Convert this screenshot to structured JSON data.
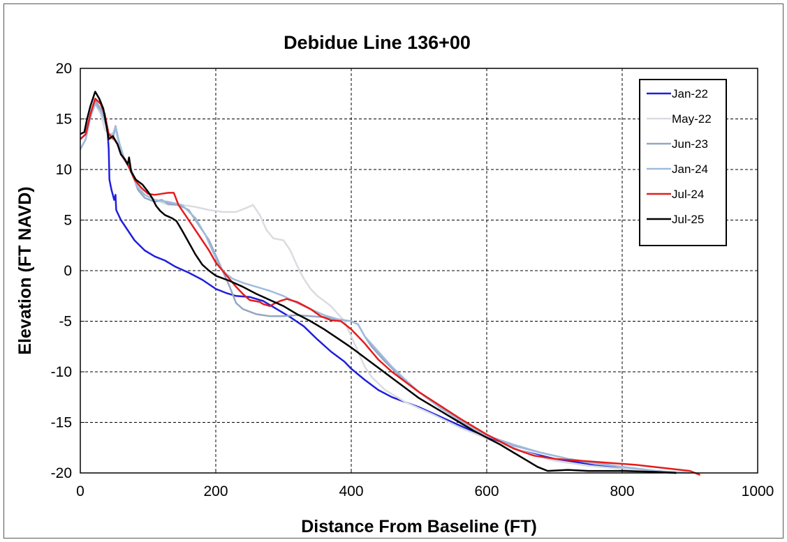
{
  "chart_data": {
    "type": "line",
    "title": "Debidue Line 136+00",
    "xlabel": "Distance From Baseline (FT)",
    "ylabel": "Elevation (FT NAVD)",
    "xlim": [
      0,
      1000
    ],
    "ylim": [
      -20,
      20
    ],
    "xticks": [
      0,
      200,
      400,
      600,
      800,
      1000
    ],
    "yticks": [
      -20,
      -15,
      -10,
      -5,
      0,
      5,
      10,
      15,
      20
    ],
    "grid": true,
    "legend_position": "top-right",
    "series": [
      {
        "name": "Jan-22",
        "color": "#1f1fdc",
        "points": [
          [
            0,
            13
          ],
          [
            8,
            13.5
          ],
          [
            15,
            15.5
          ],
          [
            22,
            17
          ],
          [
            30,
            16.5
          ],
          [
            36,
            15.5
          ],
          [
            40,
            14
          ],
          [
            42,
            12
          ],
          [
            43,
            9
          ],
          [
            46,
            8
          ],
          [
            50,
            7
          ],
          [
            52,
            7.5
          ],
          [
            53,
            6
          ],
          [
            60,
            5
          ],
          [
            70,
            4
          ],
          [
            80,
            3
          ],
          [
            95,
            2
          ],
          [
            110,
            1.4
          ],
          [
            125,
            1
          ],
          [
            140,
            0.4
          ],
          [
            160,
            -0.2
          ],
          [
            180,
            -0.9
          ],
          [
            200,
            -1.8
          ],
          [
            215,
            -2.2
          ],
          [
            230,
            -2.5
          ],
          [
            250,
            -2.6
          ],
          [
            270,
            -3
          ],
          [
            290,
            -3.8
          ],
          [
            310,
            -4.6
          ],
          [
            330,
            -5.5
          ],
          [
            350,
            -6.8
          ],
          [
            370,
            -8
          ],
          [
            390,
            -9
          ],
          [
            400,
            -9.7
          ],
          [
            420,
            -10.8
          ],
          [
            440,
            -11.8
          ],
          [
            460,
            -12.5
          ],
          [
            500,
            -13.5
          ],
          [
            550,
            -15
          ],
          [
            600,
            -16.5
          ],
          [
            650,
            -17.8
          ],
          [
            700,
            -18.6
          ],
          [
            750,
            -19.1
          ],
          [
            800,
            -19.6
          ],
          [
            850,
            -19.9
          ],
          [
            880,
            -20
          ]
        ]
      },
      {
        "name": "May-22",
        "color": "#d9dce1",
        "points": [
          [
            0,
            12
          ],
          [
            8,
            13
          ],
          [
            15,
            15.5
          ],
          [
            22,
            16.5
          ],
          [
            30,
            15.5
          ],
          [
            36,
            14
          ],
          [
            45,
            13
          ],
          [
            52,
            14
          ],
          [
            58,
            12
          ],
          [
            65,
            11
          ],
          [
            75,
            10
          ],
          [
            85,
            8.5
          ],
          [
            95,
            7.5
          ],
          [
            110,
            7
          ],
          [
            130,
            6.5
          ],
          [
            150,
            6.5
          ],
          [
            170,
            6.3
          ],
          [
            190,
            6
          ],
          [
            210,
            5.8
          ],
          [
            230,
            5.8
          ],
          [
            245,
            6.2
          ],
          [
            255,
            6.5
          ],
          [
            265,
            5.5
          ],
          [
            275,
            4
          ],
          [
            285,
            3.2
          ],
          [
            300,
            3
          ],
          [
            310,
            2
          ],
          [
            320,
            0.5
          ],
          [
            330,
            -0.8
          ],
          [
            340,
            -1.8
          ],
          [
            350,
            -2.5
          ],
          [
            370,
            -3.5
          ],
          [
            390,
            -5
          ],
          [
            400,
            -6.5
          ],
          [
            410,
            -8
          ],
          [
            420,
            -9.5
          ],
          [
            430,
            -10.5
          ],
          [
            450,
            -11.8
          ],
          [
            480,
            -13
          ],
          [
            520,
            -14.2
          ],
          [
            560,
            -15.5
          ],
          [
            600,
            -16.6
          ],
          [
            650,
            -17.8
          ],
          [
            700,
            -18.8
          ],
          [
            750,
            -19.3
          ],
          [
            800,
            -19.6
          ],
          [
            850,
            -19.8
          ],
          [
            880,
            -20
          ]
        ]
      },
      {
        "name": "Jun-23",
        "color": "#94a6c2",
        "points": [
          [
            0,
            12
          ],
          [
            8,
            13
          ],
          [
            15,
            15.5
          ],
          [
            22,
            16.8
          ],
          [
            30,
            16
          ],
          [
            36,
            15
          ],
          [
            42,
            13.5
          ],
          [
            48,
            13
          ],
          [
            52,
            14.3
          ],
          [
            58,
            12.5
          ],
          [
            65,
            11
          ],
          [
            75,
            10
          ],
          [
            85,
            8
          ],
          [
            95,
            7.2
          ],
          [
            110,
            6.8
          ],
          [
            120,
            7
          ],
          [
            130,
            6.6
          ],
          [
            145,
            6.5
          ],
          [
            160,
            6
          ],
          [
            175,
            4.5
          ],
          [
            190,
            3
          ],
          [
            200,
            1.5
          ],
          [
            210,
            0
          ],
          [
            220,
            -1.5
          ],
          [
            230,
            -3.2
          ],
          [
            240,
            -3.8
          ],
          [
            260,
            -4.3
          ],
          [
            280,
            -4.5
          ],
          [
            300,
            -4.5
          ],
          [
            320,
            -4.4
          ],
          [
            340,
            -4.5
          ],
          [
            360,
            -4.6
          ],
          [
            380,
            -4.8
          ],
          [
            400,
            -5
          ],
          [
            410,
            -5.3
          ],
          [
            420,
            -6.5
          ],
          [
            430,
            -7.5
          ],
          [
            450,
            -9
          ],
          [
            470,
            -10.3
          ],
          [
            490,
            -11.5
          ],
          [
            520,
            -13
          ],
          [
            560,
            -14.8
          ],
          [
            600,
            -16.3
          ],
          [
            640,
            -17.3
          ],
          [
            680,
            -18
          ],
          [
            720,
            -18.6
          ],
          [
            760,
            -19
          ],
          [
            800,
            -19.4
          ],
          [
            850,
            -19.8
          ],
          [
            880,
            -20
          ]
        ]
      },
      {
        "name": "Jan-24",
        "color": "#9fbbdc",
        "points": [
          [
            0,
            12
          ],
          [
            8,
            13
          ],
          [
            15,
            15.2
          ],
          [
            22,
            16.5
          ],
          [
            30,
            15.8
          ],
          [
            36,
            14.8
          ],
          [
            42,
            13.5
          ],
          [
            48,
            13.5
          ],
          [
            52,
            14.2
          ],
          [
            58,
            12.5
          ],
          [
            65,
            11
          ],
          [
            75,
            9.8
          ],
          [
            85,
            8.2
          ],
          [
            95,
            7.5
          ],
          [
            110,
            7
          ],
          [
            130,
            6.8
          ],
          [
            150,
            6.5
          ],
          [
            170,
            5.2
          ],
          [
            185,
            3.5
          ],
          [
            195,
            2
          ],
          [
            205,
            0.5
          ],
          [
            215,
            -0.3
          ],
          [
            225,
            -0.8
          ],
          [
            240,
            -1.2
          ],
          [
            260,
            -1.6
          ],
          [
            280,
            -2
          ],
          [
            300,
            -2.5
          ],
          [
            320,
            -3.2
          ],
          [
            340,
            -3.8
          ],
          [
            360,
            -4.4
          ],
          [
            380,
            -4.8
          ],
          [
            400,
            -5
          ],
          [
            410,
            -5.3
          ],
          [
            420,
            -6.5
          ],
          [
            440,
            -8
          ],
          [
            460,
            -9.5
          ],
          [
            480,
            -10.8
          ],
          [
            500,
            -12
          ],
          [
            530,
            -13.5
          ],
          [
            560,
            -14.8
          ],
          [
            600,
            -16.3
          ],
          [
            640,
            -17.2
          ],
          [
            680,
            -18
          ],
          [
            720,
            -18.6
          ],
          [
            760,
            -19.1
          ],
          [
            800,
            -19.4
          ],
          [
            850,
            -19.8
          ],
          [
            900,
            -20
          ]
        ]
      },
      {
        "name": "Jul-24",
        "color": "#e51c1c",
        "points": [
          [
            0,
            13
          ],
          [
            8,
            13.5
          ],
          [
            15,
            15.5
          ],
          [
            22,
            17
          ],
          [
            30,
            16.5
          ],
          [
            36,
            15.5
          ],
          [
            42,
            13.5
          ],
          [
            50,
            13
          ],
          [
            55,
            12.5
          ],
          [
            60,
            11.5
          ],
          [
            70,
            10.5
          ],
          [
            80,
            9
          ],
          [
            90,
            8.2
          ],
          [
            100,
            7.6
          ],
          [
            110,
            7.5
          ],
          [
            120,
            7.6
          ],
          [
            130,
            7.7
          ],
          [
            138,
            7.7
          ],
          [
            145,
            6.5
          ],
          [
            155,
            5.5
          ],
          [
            170,
            4
          ],
          [
            180,
            3
          ],
          [
            190,
            2
          ],
          [
            200,
            0.8
          ],
          [
            210,
            0
          ],
          [
            220,
            -0.8
          ],
          [
            230,
            -1.6
          ],
          [
            240,
            -2.3
          ],
          [
            250,
            -2.9
          ],
          [
            265,
            -3.1
          ],
          [
            270,
            -3.3
          ],
          [
            280,
            -3.5
          ],
          [
            285,
            -3.3
          ],
          [
            295,
            -3
          ],
          [
            305,
            -2.8
          ],
          [
            320,
            -3.1
          ],
          [
            340,
            -3.8
          ],
          [
            355,
            -4.5
          ],
          [
            370,
            -4.9
          ],
          [
            385,
            -5
          ],
          [
            400,
            -5.8
          ],
          [
            420,
            -7.2
          ],
          [
            440,
            -8.8
          ],
          [
            460,
            -10
          ],
          [
            480,
            -11
          ],
          [
            500,
            -12
          ],
          [
            530,
            -13.3
          ],
          [
            560,
            -14.6
          ],
          [
            600,
            -16.2
          ],
          [
            640,
            -17.6
          ],
          [
            670,
            -18.3
          ],
          [
            700,
            -18.6
          ],
          [
            740,
            -18.8
          ],
          [
            780,
            -19
          ],
          [
            820,
            -19.2
          ],
          [
            860,
            -19.5
          ],
          [
            900,
            -19.8
          ],
          [
            915,
            -20.2
          ]
        ]
      },
      {
        "name": "Jul-25",
        "color": "#000000",
        "points": [
          [
            0,
            13.5
          ],
          [
            6,
            13.7
          ],
          [
            10,
            15
          ],
          [
            15,
            16.3
          ],
          [
            22,
            17.7
          ],
          [
            28,
            17
          ],
          [
            34,
            16
          ],
          [
            38,
            14.5
          ],
          [
            42,
            13
          ],
          [
            48,
            13.3
          ],
          [
            55,
            12.5
          ],
          [
            60,
            11.5
          ],
          [
            66,
            11
          ],
          [
            70,
            10.5
          ],
          [
            72,
            11.2
          ],
          [
            75,
            9.8
          ],
          [
            82,
            9
          ],
          [
            92,
            8.5
          ],
          [
            100,
            7.8
          ],
          [
            106,
            7.2
          ],
          [
            112,
            6.4
          ],
          [
            118,
            5.9
          ],
          [
            125,
            5.5
          ],
          [
            135,
            5.2
          ],
          [
            142,
            4.9
          ],
          [
            150,
            4
          ],
          [
            160,
            2.8
          ],
          [
            170,
            1.6
          ],
          [
            180,
            0.6
          ],
          [
            190,
            0
          ],
          [
            200,
            -0.5
          ],
          [
            220,
            -1
          ],
          [
            240,
            -1.6
          ],
          [
            260,
            -2.3
          ],
          [
            280,
            -2.9
          ],
          [
            300,
            -3.5
          ],
          [
            320,
            -4.3
          ],
          [
            340,
            -5
          ],
          [
            360,
            -5.8
          ],
          [
            380,
            -6.7
          ],
          [
            400,
            -7.6
          ],
          [
            420,
            -8.6
          ],
          [
            440,
            -9.6
          ],
          [
            460,
            -10.6
          ],
          [
            480,
            -11.6
          ],
          [
            500,
            -12.6
          ],
          [
            520,
            -13.4
          ],
          [
            540,
            -14.2
          ],
          [
            560,
            -15
          ],
          [
            580,
            -15.8
          ],
          [
            600,
            -16.5
          ],
          [
            620,
            -17.2
          ],
          [
            640,
            -18
          ],
          [
            660,
            -18.8
          ],
          [
            675,
            -19.4
          ],
          [
            690,
            -19.8
          ],
          [
            720,
            -19.7
          ],
          [
            750,
            -19.8
          ],
          [
            800,
            -19.8
          ],
          [
            850,
            -19.9
          ],
          [
            880,
            -20
          ]
        ]
      }
    ]
  }
}
